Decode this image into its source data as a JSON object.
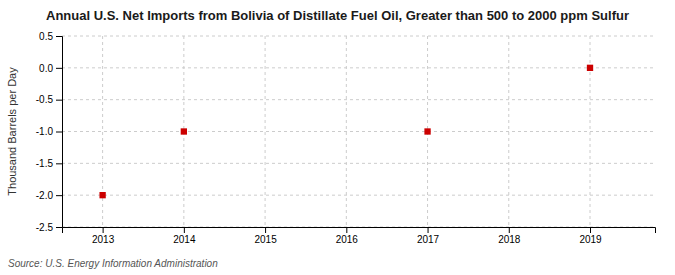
{
  "chart_data": {
    "type": "scatter",
    "title": "Annual U.S. Net Imports from Bolivia of Distillate Fuel Oil, Greater than 500 to 2000 ppm Sulfur",
    "ylabel": "Thousand Barrels per Day",
    "source": "Source: U.S. Energy Information Administration",
    "x": [
      2013,
      2014,
      2017,
      2019
    ],
    "values": [
      -2.0,
      -1.0,
      -1.0,
      0.0
    ],
    "color": "#cc0000",
    "marker": "square",
    "xlim": [
      2012.5,
      2019.8
    ],
    "ylim": [
      -2.5,
      0.5
    ],
    "xticks": [
      2013,
      2014,
      2015,
      2016,
      2017,
      2018,
      2019
    ],
    "yticks": [
      0.5,
      {
        "value": 0.0,
        "label": "0.0"
      },
      -0.5,
      {
        "value": -1.0,
        "label": "-1.0"
      },
      -1.5,
      {
        "value": -2.0,
        "label": "-2.0"
      },
      -2.5
    ],
    "grid": true
  }
}
